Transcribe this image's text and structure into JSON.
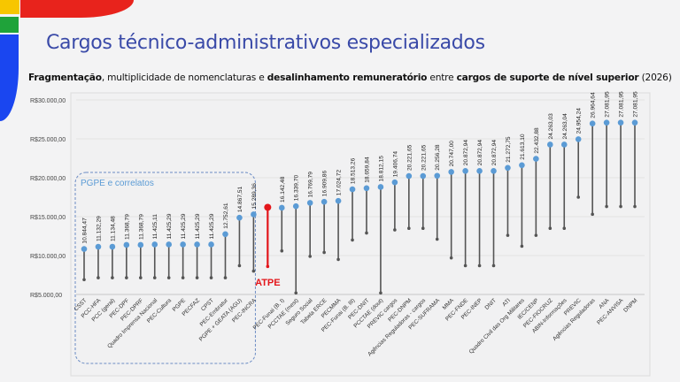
{
  "slide": {
    "title": "Cargos técnico-administrativos especializados",
    "subtitle_parts": [
      {
        "text": "Fragmentação",
        "bold": true
      },
      {
        "text": ", multiplicidade de nomenclaturas e ",
        "bold": false
      },
      {
        "text": "desalinhamento remuneratório",
        "bold": true
      },
      {
        "text": " entre ",
        "bold": false
      },
      {
        "text": "cargos de suporte de nível superior",
        "bold": true
      },
      {
        "text": " (2026)",
        "bold": false
      }
    ],
    "decor_colors": {
      "red": "#e8231c",
      "yellow": "#f7c600",
      "green": "#1fa33a",
      "blue": "#1a46f0"
    }
  },
  "chart_data": {
    "type": "range-dot",
    "title": "",
    "xlabel": "",
    "ylabel": "",
    "ylim": [
      5000,
      30000
    ],
    "yticks": [
      5000,
      10000,
      15000,
      20000,
      25000,
      30000
    ],
    "ytick_labels": [
      "R$5.000,00",
      "R$10.000,00",
      "R$15.000,00",
      "R$20.000,00",
      "R$25.000,00",
      "R$30.000,00"
    ],
    "grid": true,
    "colors": {
      "point": "#5b9bd5",
      "stem": "#555555",
      "highlight": "#e3161b",
      "group_box": "#6b8cc4",
      "group_label": "#5b9bd5"
    },
    "group_annotation": {
      "label": "PGPE e correlatos",
      "from_index": 0,
      "to_index": 11
    },
    "highlight": {
      "label": "ATPE",
      "index": 13
    },
    "points": [
      {
        "category": "CSST",
        "max": 10844.47,
        "min": 6900,
        "label": "10.844,47"
      },
      {
        "category": "PCC-HFA",
        "max": 11132.29,
        "min": 7150,
        "label": "11.132,29"
      },
      {
        "category": "PCC (geral)",
        "max": 11134.48,
        "min": 7150,
        "label": "11.134,48"
      },
      {
        "category": "PEC-DPF",
        "max": 11368.79,
        "min": 7150,
        "label": "11.368,79"
      },
      {
        "category": "PEC-DPRF",
        "max": 11368.79,
        "min": 7150,
        "label": "11.368,79"
      },
      {
        "category": "Quadro Imprensa Nacional",
        "max": 11425.11,
        "min": 7150,
        "label": "11.425,11"
      },
      {
        "category": "PEC-Cultura",
        "max": 11425.29,
        "min": 7150,
        "label": "11.425,29"
      },
      {
        "category": "PGPE",
        "max": 11425.29,
        "min": 7150,
        "label": "11.425,29"
      },
      {
        "category": "PECFAZ",
        "max": 11425.29,
        "min": 7150,
        "label": "11.425,29"
      },
      {
        "category": "CPST",
        "max": 11425.29,
        "min": 7150,
        "label": "11.425,29"
      },
      {
        "category": "PEC-Embratur",
        "max": 12752.61,
        "min": 7150,
        "label": "12.752,61"
      },
      {
        "category": "PGPE + GEATA (AGU)",
        "max": 14867.51,
        "min": 8700,
        "label": "14.867,51"
      },
      {
        "category": "PEC-INCRA",
        "max": 15289.36,
        "min": 8000,
        "label": "15.289,36"
      },
      {
        "category": "",
        "max": 16200,
        "min": 8600,
        "label": ""
      },
      {
        "category": "PEC-Funai (B. I)",
        "max": 16142.48,
        "min": 10600,
        "label": "16.142,48"
      },
      {
        "category": "PCCTAE (mest)",
        "max": 16339.7,
        "min": 5200,
        "label": "16.339,70"
      },
      {
        "category": "Seguro Social",
        "max": 16769.79,
        "min": 9900,
        "label": "16.769,79"
      },
      {
        "category": "Tabela ERCE",
        "max": 16909.86,
        "min": 10400,
        "label": "16.909,86"
      },
      {
        "category": "PECMMA",
        "max": 17024.72,
        "min": 9500,
        "label": "17.024,72"
      },
      {
        "category": "PEC-Funai (B. III)",
        "max": 18513.26,
        "min": 12000,
        "label": "18.513,26"
      },
      {
        "category": "PEC-DNIT",
        "max": 18659.84,
        "min": 12900,
        "label": "18.659,84"
      },
      {
        "category": "PCCTAE (dout)",
        "max": 18812.15,
        "min": 5200,
        "label": "18.812,15"
      },
      {
        "category": "PREVIC cargos",
        "max": 19406.74,
        "min": 13300,
        "label": "19.406,74"
      },
      {
        "category": "PEC-DNPM",
        "max": 20221.65,
        "min": 13500,
        "label": "20.221,65"
      },
      {
        "category": "Agências Reguladoras - cargos",
        "max": 20221.65,
        "min": 13500,
        "label": "20.221,65"
      },
      {
        "category": "PEC-SUFRAMA",
        "max": 20256.28,
        "min": 12100,
        "label": "20.256,28"
      },
      {
        "category": "MMA",
        "max": 20747.0,
        "min": 9700,
        "label": "20.747,00"
      },
      {
        "category": "PEC-FNDE",
        "max": 20872.94,
        "min": 8700,
        "label": "20.872,94"
      },
      {
        "category": "PEC-INEP",
        "max": 20872.94,
        "min": 8700,
        "label": "20.872,94"
      },
      {
        "category": "DNIT",
        "max": 20872.94,
        "min": 8700,
        "label": "20.872,94"
      },
      {
        "category": "ATI",
        "max": 21272.75,
        "min": 12600,
        "label": "21.272,75"
      },
      {
        "category": "Quadro Civil das Org Militares",
        "max": 21613.1,
        "min": 11200,
        "label": "21.613,10"
      },
      {
        "category": "IEC/CENP",
        "max": 22432.88,
        "min": 12600,
        "label": "22.432,88"
      },
      {
        "category": "PEC-FIOCRUZ",
        "max": 24263.03,
        "min": 13500,
        "label": "24.263,03"
      },
      {
        "category": "ABIN-Informações",
        "max": 24263.04,
        "min": 13500,
        "label": "24.263,04"
      },
      {
        "category": "PREVIC",
        "max": 24954.24,
        "min": 17500,
        "label": "24.954,24"
      },
      {
        "category": "Agências Reguladoras",
        "max": 26964.64,
        "min": 15300,
        "label": "26.964,64"
      },
      {
        "category": "ANA",
        "max": 27081.95,
        "min": 16300,
        "label": "27.081,95"
      },
      {
        "category": "PEC-ANVISA",
        "max": 27081.95,
        "min": 16300,
        "label": "27.081,95"
      },
      {
        "category": "DNPM",
        "max": 27081.95,
        "min": 16300,
        "label": "27.081,95"
      }
    ]
  }
}
